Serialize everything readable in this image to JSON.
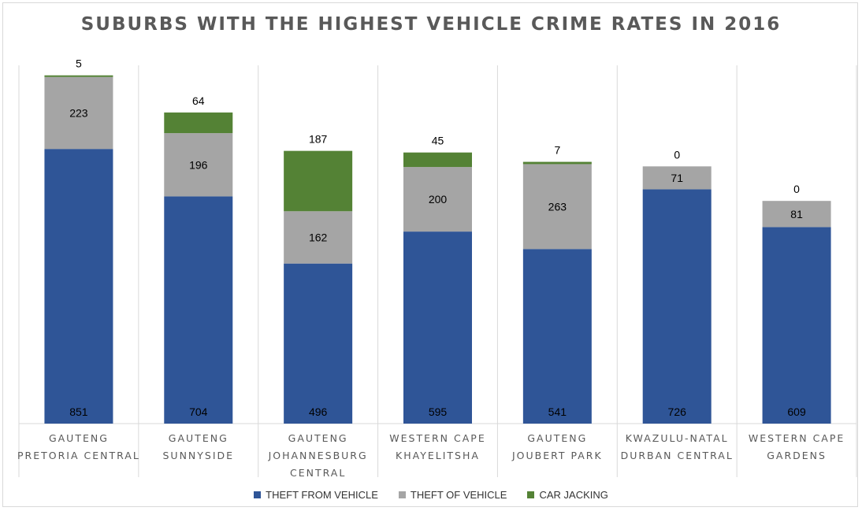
{
  "chart_data": {
    "type": "bar",
    "stacked": true,
    "title": "SUBURBS WITH THE HIGHEST VEHICLE CRIME RATES IN 2016",
    "categories": [
      [
        "GAUTENG",
        "PRETORIA CENTRAL"
      ],
      [
        "GAUTENG",
        "SUNNYSIDE"
      ],
      [
        "GAUTENG",
        "JOHANNESBURG",
        "CENTRAL"
      ],
      [
        "WESTERN CAPE",
        "KHAYELITSHA"
      ],
      [
        "GAUTENG",
        "JOUBERT PARK"
      ],
      [
        "KWAZULU-NATAL",
        "DURBAN CENTRAL"
      ],
      [
        "WESTERN CAPE",
        "GARDENS"
      ]
    ],
    "series": [
      {
        "name": "THEFT FROM VEHICLE",
        "color": "#2f5597",
        "values": [
          851,
          704,
          496,
          595,
          541,
          726,
          609
        ]
      },
      {
        "name": "THEFT OF VEHICLE",
        "color": "#a5a5a5",
        "values": [
          223,
          196,
          162,
          200,
          263,
          71,
          81
        ]
      },
      {
        "name": "CAR JACKING",
        "color": "#548235",
        "values": [
          5,
          64,
          187,
          45,
          7,
          0,
          0
        ]
      }
    ],
    "ylim": [
      0,
      1110
    ],
    "grid": false,
    "legend_position": "bottom"
  }
}
